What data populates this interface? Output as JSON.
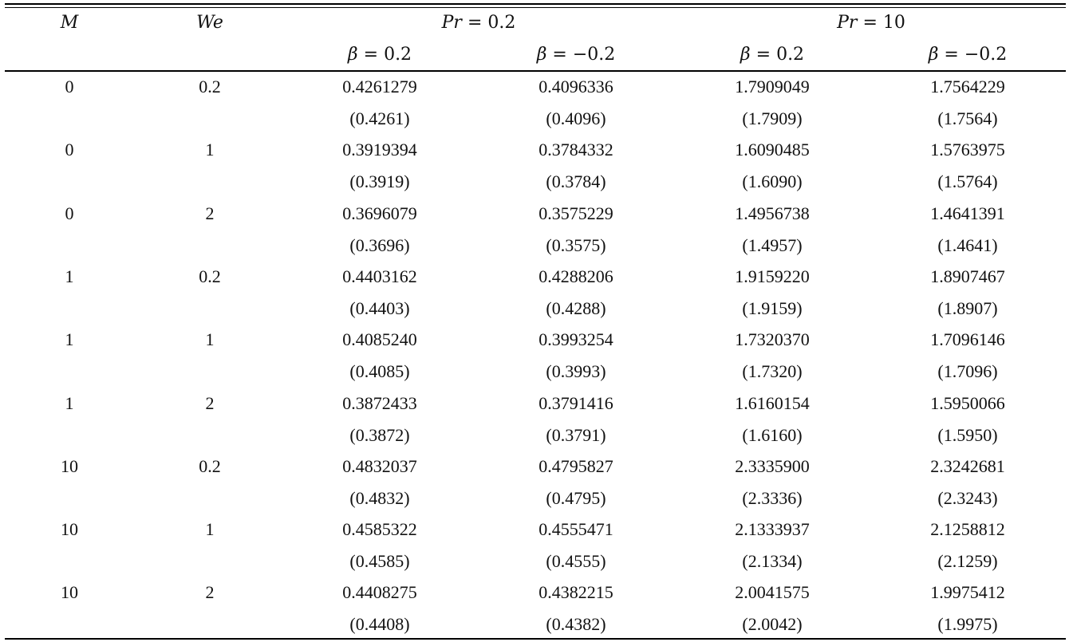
{
  "table": {
    "header": {
      "col_m": "M",
      "col_we": "We",
      "group1": {
        "param": "Pr",
        "value": "0.2"
      },
      "group2": {
        "param": "Pr",
        "value": "10"
      },
      "sub": [
        {
          "param": "β",
          "value": "0.2"
        },
        {
          "param": "β",
          "value": "−0.2"
        },
        {
          "param": "β",
          "value": "0.2"
        },
        {
          "param": "β",
          "value": "−0.2"
        }
      ]
    },
    "rows": [
      {
        "m": "0",
        "we": "0.2",
        "vals": [
          "0.4261279",
          "0.4096336",
          "1.7909049",
          "1.7564229"
        ],
        "refs": [
          "(0.4261)",
          "(0.4096)",
          "(1.7909)",
          "(1.7564)"
        ]
      },
      {
        "m": "0",
        "we": "1",
        "vals": [
          "0.3919394",
          "0.3784332",
          "1.6090485",
          "1.5763975"
        ],
        "refs": [
          "(0.3919)",
          "(0.3784)",
          "(1.6090)",
          "(1.5764)"
        ]
      },
      {
        "m": "0",
        "we": "2",
        "vals": [
          "0.3696079",
          "0.3575229",
          "1.4956738",
          "1.4641391"
        ],
        "refs": [
          "(0.3696)",
          "(0.3575)",
          "(1.4957)",
          "(1.4641)"
        ]
      },
      {
        "m": "1",
        "we": "0.2",
        "vals": [
          "0.4403162",
          "0.4288206",
          "1.9159220",
          "1.8907467"
        ],
        "refs": [
          "(0.4403)",
          "(0.4288)",
          "(1.9159)",
          "(1.8907)"
        ]
      },
      {
        "m": "1",
        "we": "1",
        "vals": [
          "0.4085240",
          "0.3993254",
          "1.7320370",
          "1.7096146"
        ],
        "refs": [
          "(0.4085)",
          "(0.3993)",
          "(1.7320)",
          "(1.7096)"
        ]
      },
      {
        "m": "1",
        "we": "2",
        "vals": [
          "0.3872433",
          "0.3791416",
          "1.6160154",
          "1.5950066"
        ],
        "refs": [
          "(0.3872)",
          "(0.3791)",
          "(1.6160)",
          "(1.5950)"
        ]
      },
      {
        "m": "10",
        "we": "0.2",
        "vals": [
          "0.4832037",
          "0.4795827",
          "2.3335900",
          "2.3242681"
        ],
        "refs": [
          "(0.4832)",
          "(0.4795)",
          "(2.3336)",
          "(2.3243)"
        ]
      },
      {
        "m": "10",
        "we": "1",
        "vals": [
          "0.4585322",
          "0.4555471",
          "2.1333937",
          "2.1258812"
        ],
        "refs": [
          "(0.4585)",
          "(0.4555)",
          "(2.1334)",
          "(2.1259)"
        ]
      },
      {
        "m": "10",
        "we": "2",
        "vals": [
          "0.4408275",
          "0.4382215",
          "2.0041575",
          "1.9975412"
        ],
        "refs": [
          "(0.4408)",
          "(0.4382)",
          "(2.0042)",
          "(1.9975)"
        ]
      }
    ]
  }
}
